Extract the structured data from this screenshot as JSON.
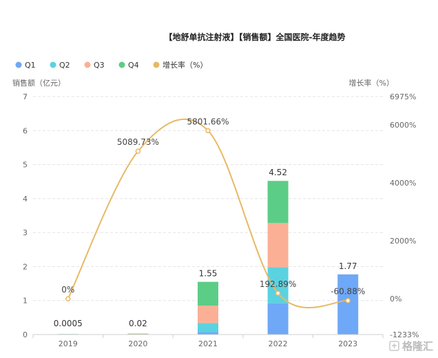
{
  "chart_data": {
    "type": "bar",
    "stacked": true,
    "title": "【地舒单抗注射液】【销售额】全国医院-年度趋势",
    "categories": [
      "2019",
      "2020",
      "2021",
      "2022",
      "2023"
    ],
    "ylabel_left": "销售额（亿元）",
    "ylabel_right": "增长率（%）",
    "ylim_left": [
      0,
      7
    ],
    "yticks_left": [
      "0",
      "1",
      "2",
      "3",
      "4",
      "5",
      "6",
      "7"
    ],
    "ylim_right": [
      -1233,
      6975
    ],
    "yticks_right": [
      {
        "value": -1233,
        "label": "-1233%"
      },
      {
        "value": 0,
        "label": "0%"
      },
      {
        "value": 2000,
        "label": "2000%"
      },
      {
        "value": 4000,
        "label": "4000%"
      },
      {
        "value": 6000,
        "label": "6000%"
      },
      {
        "value": 6975,
        "label": "6975%"
      }
    ],
    "grid": true,
    "legend_position": "top-left",
    "series": [
      {
        "name": "Q1",
        "color": "#6fa8f7",
        "values": [
          0.0001,
          0.005,
          0.07,
          0.92,
          1.77
        ]
      },
      {
        "name": "Q2",
        "color": "#5bd2e0",
        "values": [
          0.0001,
          0.005,
          0.27,
          1.06,
          0
        ]
      },
      {
        "name": "Q3",
        "color": "#fbb096",
        "values": [
          0.0001,
          0.005,
          0.51,
          1.3,
          0
        ]
      },
      {
        "name": "Q4",
        "color": "#5ccd86",
        "values": [
          0.0002,
          0.005,
          0.7,
          1.24,
          0
        ]
      }
    ],
    "totals": [
      0.0005,
      0.02,
      1.55,
      4.52,
      1.77
    ],
    "total_labels": [
      "0.0005",
      "0.02",
      "1.55",
      "4.52",
      "1.77"
    ],
    "growth_rate": {
      "name": "增长率（%）",
      "color": "#e8b964",
      "values": [
        0,
        5089.73,
        5801.66,
        192.89,
        -60.88
      ],
      "labels": [
        "0%",
        "5089.73%",
        "5801.66%",
        "192.89%",
        "-60.88%"
      ]
    }
  },
  "watermark": "格隆汇"
}
